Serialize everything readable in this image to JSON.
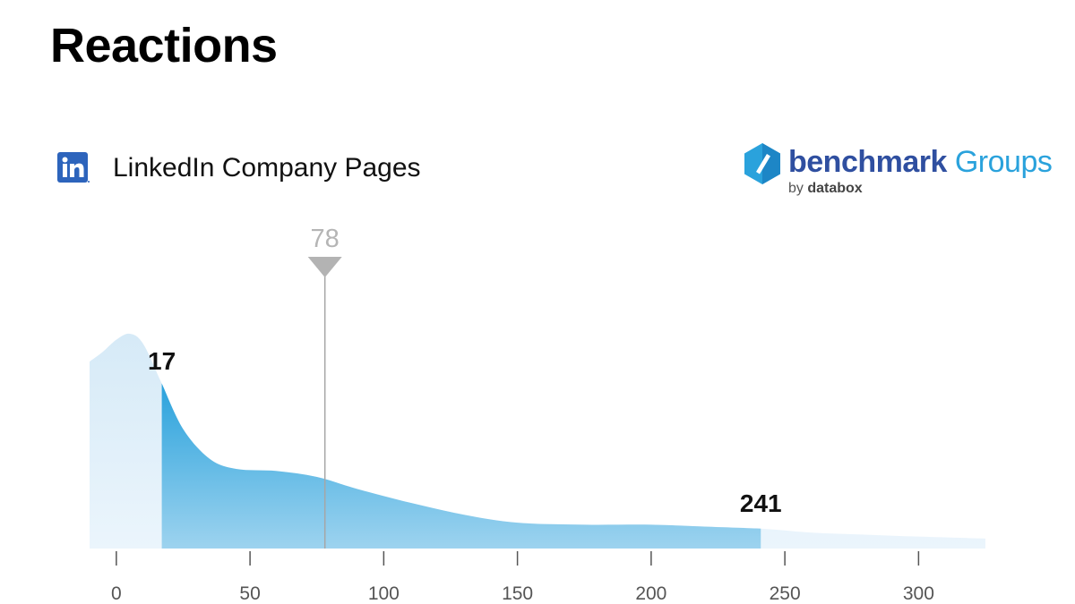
{
  "page": {
    "title": "Reactions",
    "source_label": "LinkedIn Company Pages",
    "source_icon": "linkedin-icon"
  },
  "brand": {
    "main": "benchmark",
    "groups": "Groups",
    "by": "by",
    "company": "databox",
    "icon": "benchmark-logo-icon"
  },
  "colors": {
    "fill_light": "#dcedf8",
    "fill_dark": "#2aa2dc",
    "fill_dark_bottom": "#9dd3ef",
    "median_line": "#a6a6a6",
    "linkedin": "#2d64bc"
  },
  "chart_data": {
    "type": "area",
    "title": "",
    "xlabel": "",
    "ylabel": "",
    "xlim": [
      -10,
      325
    ],
    "x_ticks": [
      0,
      50,
      100,
      150,
      200,
      250,
      300
    ],
    "lower_bound": 17,
    "upper_bound": 241,
    "median": 78,
    "density": {
      "x": [
        -10,
        -5,
        0,
        5,
        10,
        17,
        25,
        35,
        45,
        60,
        75,
        90,
        110,
        130,
        150,
        175,
        200,
        220,
        241,
        260,
        280,
        300,
        325
      ],
      "y": [
        0.94,
        0.99,
        1.05,
        1.08,
        1.03,
        0.83,
        0.6,
        0.45,
        0.4,
        0.39,
        0.36,
        0.3,
        0.23,
        0.17,
        0.13,
        0.12,
        0.12,
        0.11,
        0.1,
        0.08,
        0.07,
        0.06,
        0.05
      ]
    },
    "labels": {
      "lower": "17",
      "upper": "241",
      "median": "78"
    }
  }
}
